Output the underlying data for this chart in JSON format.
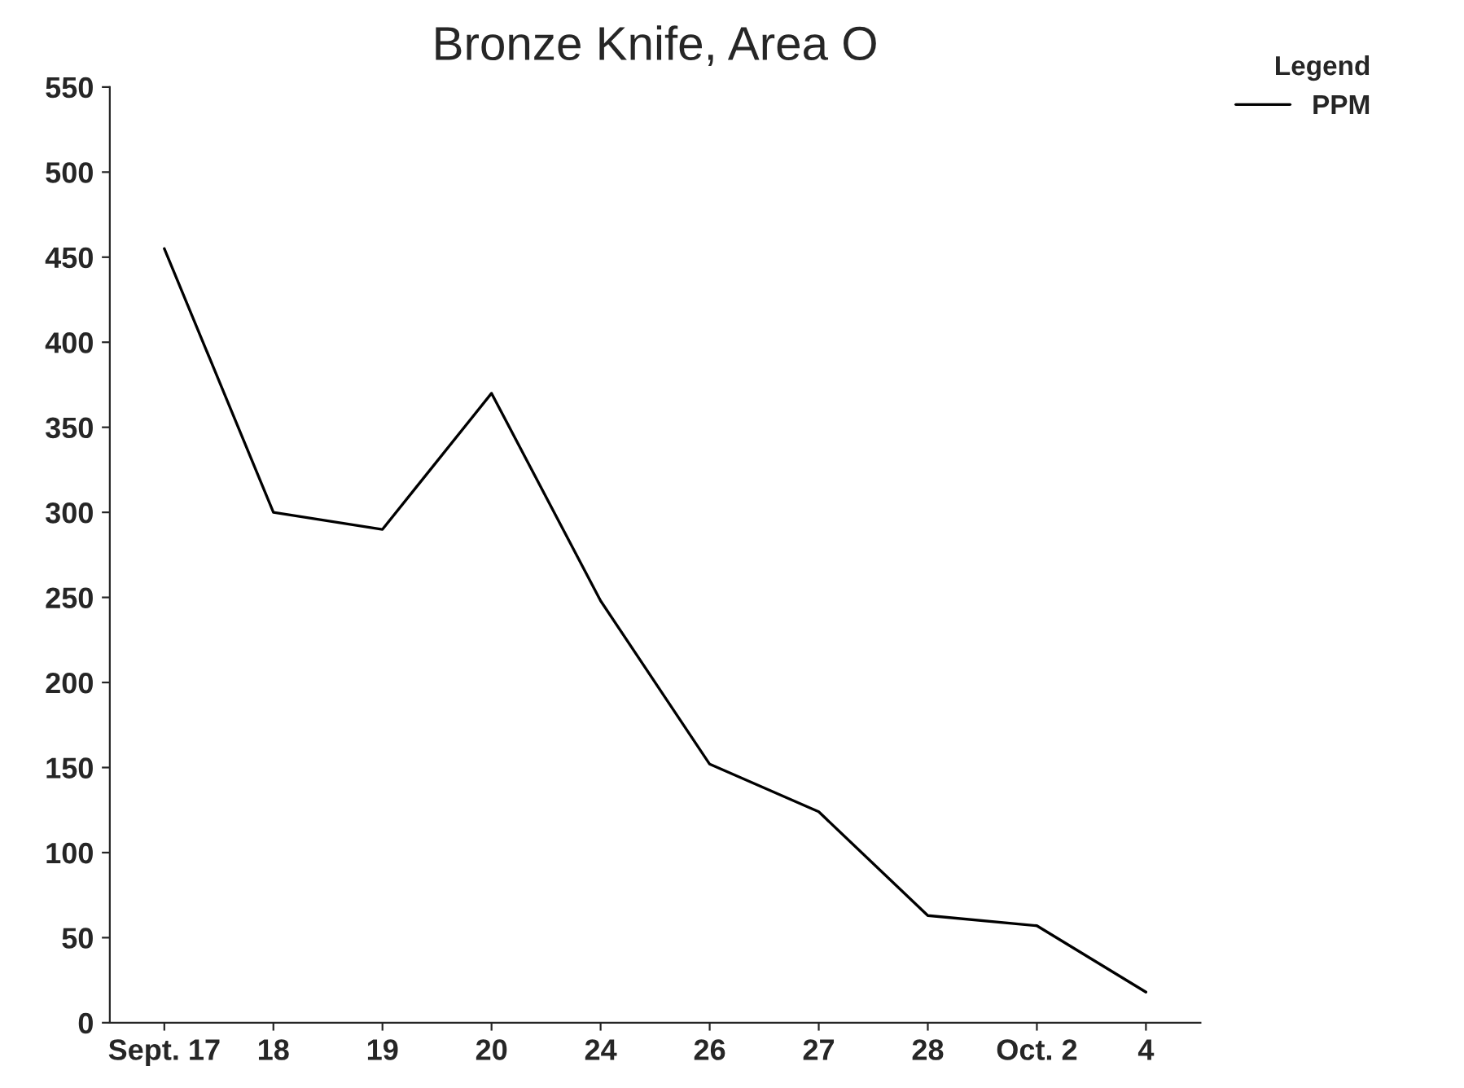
{
  "chart_data": {
    "type": "line",
    "title": "Bronze Knife, Area O",
    "legend_title": "Legend",
    "categories": [
      "Sept. 17",
      "18",
      "19",
      "20",
      "24",
      "26",
      "27",
      "28",
      "Oct. 2",
      "4"
    ],
    "series": [
      {
        "name": "PPM",
        "color": "#000000",
        "values": [
          455,
          300,
          290,
          370,
          248,
          152,
          124,
          63,
          57,
          18
        ]
      }
    ],
    "ylim": [
      0,
      550
    ],
    "yticks": [
      0,
      50,
      100,
      150,
      200,
      250,
      300,
      350,
      400,
      450,
      500,
      550
    ],
    "grid": false,
    "legend": "top right",
    "marker": "none",
    "line_style": "solid"
  }
}
